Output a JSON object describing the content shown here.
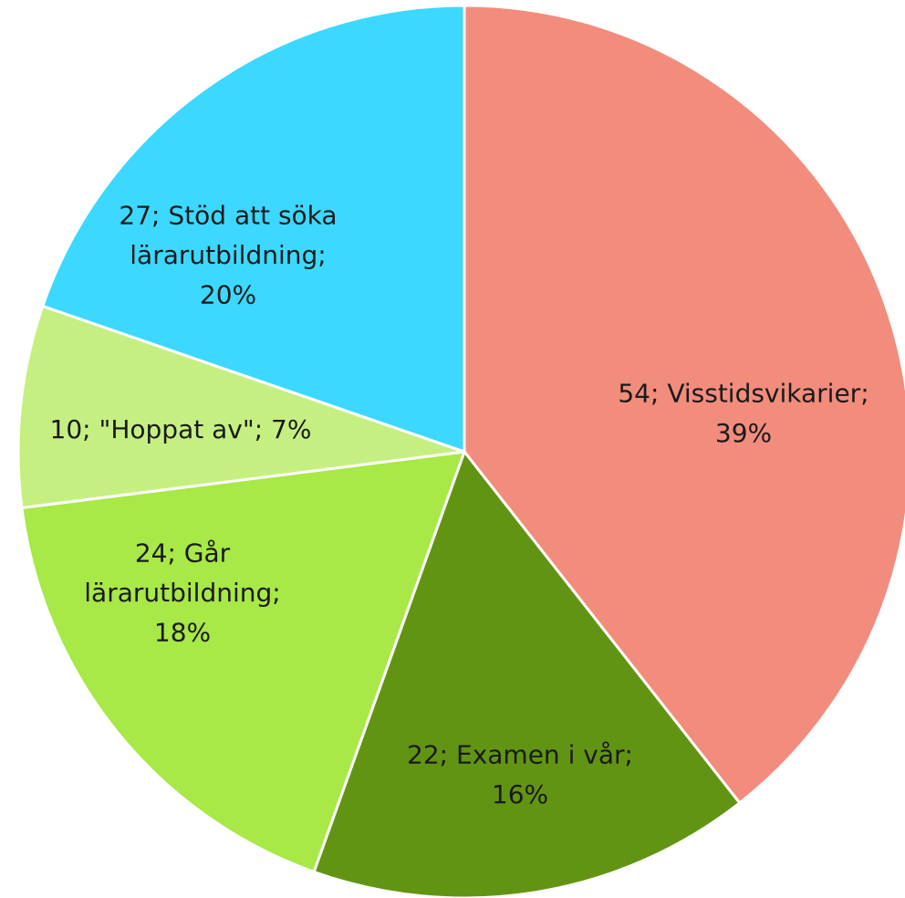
{
  "chart_data": {
    "type": "pie",
    "values": [
      54,
      22,
      24,
      10,
      27
    ],
    "value_labels": [
      [
        "54; Visstidsvikarier;",
        "39%"
      ],
      [
        "22; Examen i vår;",
        "16%"
      ],
      [
        "24; Går",
        "lärarutbildning;",
        "18%"
      ],
      [
        "10; \"Hoppat av\"; 7%"
      ],
      [
        "27; Stöd att söka",
        "lärarutbildning;",
        "20%"
      ]
    ],
    "colors": [
      "#f28c7c",
      "#629413",
      "#a8e847",
      "#c6ef82",
      "#3dd8ff"
    ]
  }
}
